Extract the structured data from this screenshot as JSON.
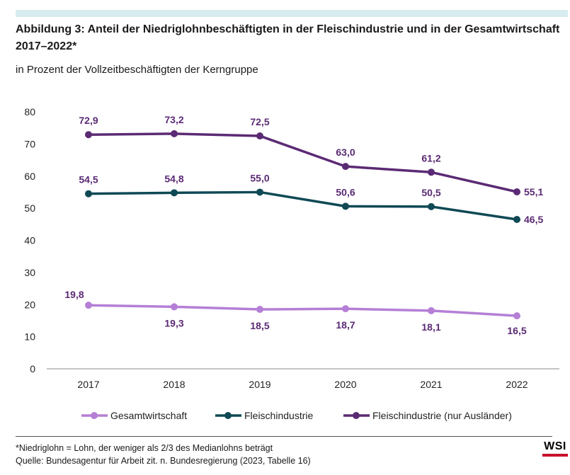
{
  "header": {
    "title": "Abbildung 3: Anteil der Niedriglohnbeschäftigten in der Fleischindustrie und in der Gesamtwirtschaft 2017–2022*",
    "subtitle": "in Prozent der Vollzeitbeschäftigten der Kerngruppe"
  },
  "chart_data": {
    "type": "line",
    "x": [
      "2017",
      "2018",
      "2019",
      "2020",
      "2021",
      "2022"
    ],
    "ylim": [
      0,
      80
    ],
    "yticks": [
      0,
      10,
      20,
      30,
      40,
      50,
      60,
      70,
      80
    ],
    "grid": false,
    "legend_position": "bottom",
    "series": [
      {
        "name": "Gesamtwirtschaft",
        "color": "#b57fd6",
        "values": [
          19.8,
          19.3,
          18.5,
          18.7,
          18.1,
          16.5
        ],
        "labels": [
          "19,8",
          "19,3",
          "18,5",
          "18,7",
          "18,1",
          "16,5"
        ]
      },
      {
        "name": "Fleischindustrie",
        "color": "#0f4955",
        "values": [
          54.5,
          54.8,
          55.0,
          50.6,
          50.5,
          46.5
        ],
        "labels": [
          "54,5",
          "54,8",
          "55,0",
          "50,6",
          "50,5",
          "46,5"
        ]
      },
      {
        "name": "Fleischindustrie (nur Ausländer)",
        "color": "#5b2a74",
        "values": [
          72.9,
          73.2,
          72.5,
          63.0,
          61.2,
          55.1
        ],
        "labels": [
          "72,9",
          "73,2",
          "72,5",
          "63,0",
          "61,2",
          "55,1"
        ]
      }
    ],
    "label_color": "#5b2a74"
  },
  "footer": {
    "note": "*Niedriglohn = Lohn, der weniger als 2/3 des Medianlohns beträgt",
    "source": "Quelle: Bundesagentur für Arbeit zit. n. Bundesregierung (2023, Tabelle 16)",
    "logo_text": "WSI",
    "logo_color": "#c8102e"
  }
}
